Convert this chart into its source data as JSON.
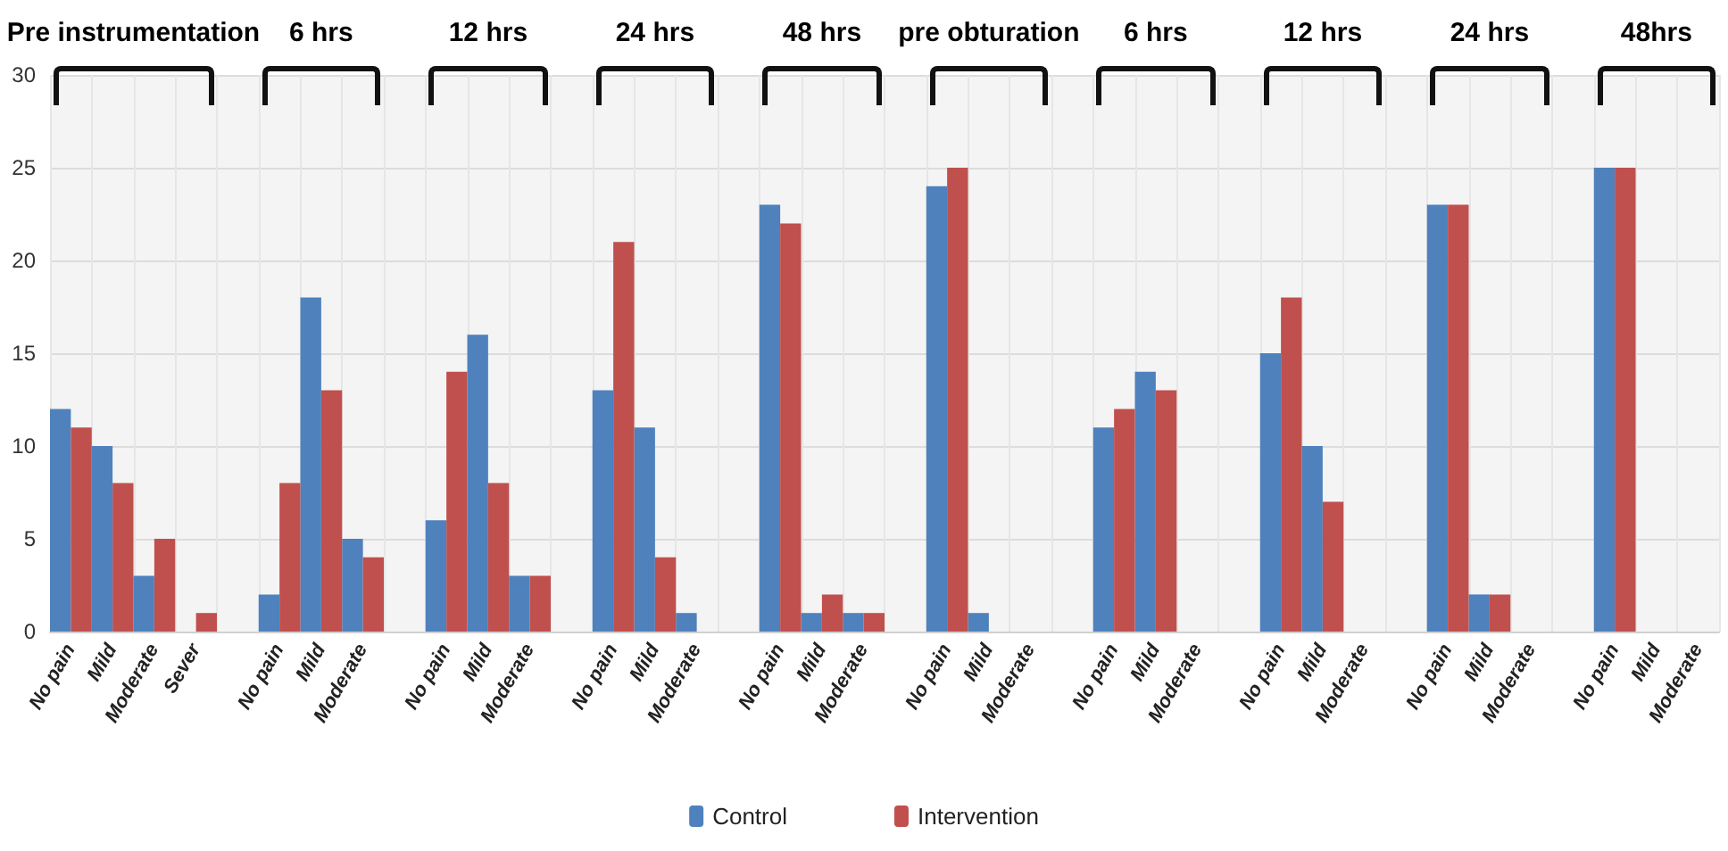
{
  "chart_data": {
    "type": "bar",
    "categories": [
      "No pain",
      "Mild",
      "Moderate",
      "Sever",
      null,
      "No pain",
      "Mild",
      "Moderate",
      null,
      "No pain",
      "Mild",
      "Moderate",
      null,
      "No pain",
      "Mild",
      "Moderate",
      null,
      "No pain",
      "Mild",
      "Moderate",
      null,
      "No pain",
      "Mild",
      "Moderate",
      null,
      "No pain",
      "Mild",
      "Moderate",
      null,
      "No pain",
      "Mild",
      "Moderate",
      null,
      "No pain",
      "Mild",
      "Moderate",
      null,
      "No pain",
      "Mild",
      "Moderate"
    ],
    "series": [
      {
        "name": "Control",
        "color": "#4f81bd",
        "values": [
          12,
          10,
          3,
          0,
          null,
          2,
          18,
          5,
          null,
          6,
          16,
          3,
          null,
          13,
          11,
          1,
          null,
          23,
          1,
          1,
          null,
          24,
          1,
          0,
          null,
          11,
          14,
          0,
          null,
          15,
          10,
          0,
          null,
          23,
          2,
          0,
          null,
          25,
          0,
          0
        ]
      },
      {
        "name": "Intervention",
        "color": "#c0504d",
        "values": [
          11,
          8,
          5,
          1,
          null,
          8,
          13,
          4,
          null,
          14,
          8,
          3,
          null,
          21,
          4,
          0,
          null,
          22,
          2,
          1,
          null,
          25,
          0,
          0,
          null,
          12,
          13,
          0,
          null,
          18,
          7,
          0,
          null,
          23,
          2,
          0,
          null,
          25,
          0,
          0
        ]
      }
    ],
    "annotations": [
      "Pre instrumentation",
      "6 hrs",
      "12 hrs",
      "24 hrs",
      "48 hrs",
      "pre obturation",
      "6 hrs",
      "12 hrs",
      "24 hrs",
      "48hrs"
    ],
    "ylim": [
      0,
      30
    ],
    "yticks": [
      0,
      5,
      10,
      15,
      20,
      25,
      30
    ],
    "grid": true,
    "legend": "bottom"
  }
}
